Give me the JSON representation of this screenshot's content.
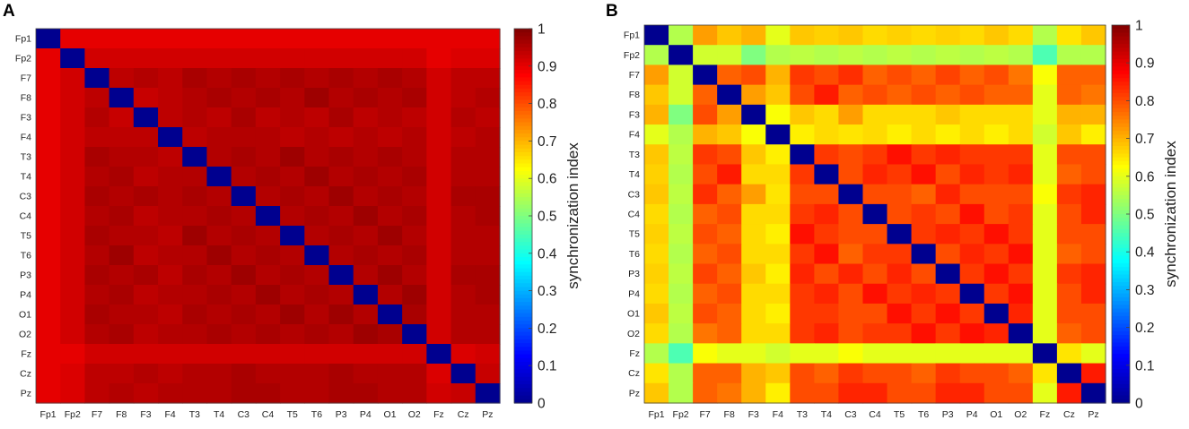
{
  "figure": {
    "panel_a_label": "A",
    "panel_b_label": "B"
  },
  "chart_data": [
    {
      "type": "heatmap",
      "panel": "A",
      "title": "",
      "xlabel": "",
      "ylabel": "",
      "colorbar_label": "synchronization index",
      "colorbar_range": [
        0,
        1
      ],
      "colorbar_ticks": [
        "0",
        "0.1",
        "0.2",
        "0.3",
        "0.4",
        "0.5",
        "0.6",
        "0.7",
        "0.8",
        "0.9",
        "1"
      ],
      "channels": [
        "Fp1",
        "Fp2",
        "F7",
        "F8",
        "F3",
        "F4",
        "T3",
        "T4",
        "C3",
        "C4",
        "T5",
        "T6",
        "P3",
        "P4",
        "O1",
        "O2",
        "Fz",
        "Cz",
        "Pz"
      ],
      "matrix": [
        [
          0.0,
          0.9,
          0.9,
          0.9,
          0.9,
          0.9,
          0.9,
          0.9,
          0.9,
          0.9,
          0.9,
          0.9,
          0.9,
          0.9,
          0.9,
          0.9,
          0.9,
          0.9,
          0.9
        ],
        [
          0.9,
          0.0,
          0.92,
          0.92,
          0.92,
          0.92,
          0.92,
          0.92,
          0.92,
          0.92,
          0.92,
          0.92,
          0.92,
          0.92,
          0.92,
          0.92,
          0.9,
          0.91,
          0.91
        ],
        [
          0.9,
          0.92,
          0.0,
          0.94,
          0.95,
          0.94,
          0.96,
          0.95,
          0.96,
          0.95,
          0.96,
          0.95,
          0.96,
          0.95,
          0.96,
          0.95,
          0.92,
          0.94,
          0.94
        ],
        [
          0.9,
          0.92,
          0.94,
          0.0,
          0.93,
          0.94,
          0.95,
          0.96,
          0.95,
          0.96,
          0.95,
          0.97,
          0.95,
          0.96,
          0.95,
          0.96,
          0.92,
          0.94,
          0.95
        ],
        [
          0.9,
          0.92,
          0.95,
          0.93,
          0.0,
          0.94,
          0.95,
          0.94,
          0.96,
          0.94,
          0.95,
          0.94,
          0.96,
          0.94,
          0.95,
          0.94,
          0.92,
          0.95,
          0.94
        ],
        [
          0.9,
          0.92,
          0.94,
          0.94,
          0.94,
          0.0,
          0.94,
          0.95,
          0.95,
          0.95,
          0.94,
          0.95,
          0.94,
          0.95,
          0.94,
          0.95,
          0.92,
          0.94,
          0.95
        ],
        [
          0.9,
          0.92,
          0.96,
          0.95,
          0.95,
          0.94,
          0.0,
          0.95,
          0.96,
          0.95,
          0.97,
          0.95,
          0.96,
          0.95,
          0.96,
          0.95,
          0.92,
          0.95,
          0.95
        ],
        [
          0.9,
          0.92,
          0.95,
          0.96,
          0.94,
          0.95,
          0.95,
          0.0,
          0.95,
          0.96,
          0.95,
          0.97,
          0.95,
          0.96,
          0.95,
          0.96,
          0.92,
          0.95,
          0.95
        ],
        [
          0.9,
          0.92,
          0.96,
          0.95,
          0.96,
          0.95,
          0.96,
          0.95,
          0.0,
          0.95,
          0.96,
          0.95,
          0.97,
          0.95,
          0.96,
          0.95,
          0.92,
          0.96,
          0.96
        ],
        [
          0.9,
          0.92,
          0.95,
          0.96,
          0.94,
          0.95,
          0.95,
          0.96,
          0.95,
          0.0,
          0.95,
          0.96,
          0.95,
          0.97,
          0.95,
          0.96,
          0.92,
          0.95,
          0.96
        ],
        [
          0.9,
          0.92,
          0.96,
          0.95,
          0.95,
          0.94,
          0.97,
          0.95,
          0.96,
          0.95,
          0.0,
          0.95,
          0.96,
          0.95,
          0.97,
          0.95,
          0.92,
          0.95,
          0.95
        ],
        [
          0.9,
          0.92,
          0.95,
          0.97,
          0.94,
          0.95,
          0.95,
          0.97,
          0.95,
          0.96,
          0.95,
          0.0,
          0.95,
          0.96,
          0.95,
          0.96,
          0.92,
          0.95,
          0.95
        ],
        [
          0.9,
          0.92,
          0.96,
          0.95,
          0.96,
          0.94,
          0.96,
          0.95,
          0.97,
          0.95,
          0.96,
          0.95,
          0.0,
          0.95,
          0.97,
          0.95,
          0.92,
          0.96,
          0.96
        ],
        [
          0.9,
          0.92,
          0.95,
          0.96,
          0.94,
          0.95,
          0.95,
          0.96,
          0.95,
          0.97,
          0.95,
          0.96,
          0.95,
          0.0,
          0.95,
          0.97,
          0.92,
          0.95,
          0.96
        ],
        [
          0.9,
          0.92,
          0.96,
          0.95,
          0.95,
          0.94,
          0.96,
          0.95,
          0.96,
          0.95,
          0.97,
          0.95,
          0.97,
          0.95,
          0.0,
          0.96,
          0.92,
          0.95,
          0.95
        ],
        [
          0.9,
          0.92,
          0.95,
          0.96,
          0.94,
          0.95,
          0.95,
          0.96,
          0.95,
          0.96,
          0.95,
          0.96,
          0.95,
          0.97,
          0.96,
          0.0,
          0.92,
          0.95,
          0.95
        ],
        [
          0.9,
          0.9,
          0.92,
          0.92,
          0.92,
          0.92,
          0.92,
          0.92,
          0.92,
          0.92,
          0.92,
          0.92,
          0.92,
          0.92,
          0.92,
          0.92,
          0.0,
          0.91,
          0.92
        ],
        [
          0.9,
          0.91,
          0.94,
          0.94,
          0.95,
          0.94,
          0.95,
          0.95,
          0.96,
          0.95,
          0.95,
          0.95,
          0.96,
          0.95,
          0.95,
          0.95,
          0.91,
          0.0,
          0.93
        ],
        [
          0.9,
          0.91,
          0.94,
          0.95,
          0.94,
          0.95,
          0.95,
          0.95,
          0.96,
          0.96,
          0.95,
          0.95,
          0.96,
          0.96,
          0.95,
          0.95,
          0.92,
          0.93,
          0.0
        ]
      ]
    },
    {
      "type": "heatmap",
      "panel": "B",
      "title": "",
      "xlabel": "",
      "ylabel": "",
      "colorbar_label": "synchronization index",
      "colorbar_range": [
        0,
        1
      ],
      "colorbar_ticks": [
        "0",
        "0.1",
        "0.2",
        "0.3",
        "0.4",
        "0.5",
        "0.6",
        "0.7",
        "0.8",
        "0.9",
        "1"
      ],
      "channels": [
        "Fp1",
        "Fp2",
        "F7",
        "F8",
        "F3",
        "F4",
        "T3",
        "T4",
        "C3",
        "C4",
        "T5",
        "T6",
        "P3",
        "P4",
        "O1",
        "O2",
        "Fz",
        "Cz",
        "Pz"
      ],
      "matrix": [
        [
          0.0,
          0.55,
          0.72,
          0.68,
          0.7,
          0.6,
          0.68,
          0.67,
          0.68,
          0.66,
          0.67,
          0.66,
          0.67,
          0.66,
          0.68,
          0.66,
          0.55,
          0.65,
          0.68
        ],
        [
          0.55,
          0.0,
          0.58,
          0.58,
          0.5,
          0.55,
          0.56,
          0.55,
          0.56,
          0.55,
          0.56,
          0.55,
          0.56,
          0.55,
          0.56,
          0.55,
          0.45,
          0.55,
          0.55
        ],
        [
          0.72,
          0.58,
          0.0,
          0.78,
          0.8,
          0.7,
          0.82,
          0.8,
          0.83,
          0.78,
          0.8,
          0.78,
          0.81,
          0.78,
          0.8,
          0.76,
          0.62,
          0.78,
          0.78
        ],
        [
          0.68,
          0.58,
          0.78,
          0.0,
          0.72,
          0.68,
          0.8,
          0.85,
          0.78,
          0.8,
          0.78,
          0.8,
          0.78,
          0.8,
          0.78,
          0.78,
          0.6,
          0.78,
          0.76
        ],
        [
          0.7,
          0.5,
          0.8,
          0.72,
          0.0,
          0.62,
          0.68,
          0.66,
          0.72,
          0.66,
          0.66,
          0.66,
          0.68,
          0.66,
          0.66,
          0.66,
          0.6,
          0.7,
          0.7
        ],
        [
          0.6,
          0.55,
          0.7,
          0.68,
          0.62,
          0.0,
          0.64,
          0.66,
          0.65,
          0.66,
          0.64,
          0.66,
          0.64,
          0.66,
          0.64,
          0.66,
          0.58,
          0.68,
          0.64
        ],
        [
          0.68,
          0.56,
          0.82,
          0.8,
          0.68,
          0.64,
          0.0,
          0.82,
          0.8,
          0.82,
          0.86,
          0.82,
          0.84,
          0.82,
          0.82,
          0.82,
          0.6,
          0.8,
          0.8
        ],
        [
          0.67,
          0.55,
          0.8,
          0.85,
          0.66,
          0.66,
          0.82,
          0.0,
          0.8,
          0.84,
          0.82,
          0.86,
          0.8,
          0.84,
          0.82,
          0.84,
          0.6,
          0.78,
          0.8
        ],
        [
          0.68,
          0.56,
          0.83,
          0.78,
          0.72,
          0.65,
          0.8,
          0.8,
          0.0,
          0.8,
          0.8,
          0.78,
          0.84,
          0.8,
          0.8,
          0.8,
          0.62,
          0.82,
          0.84
        ],
        [
          0.66,
          0.55,
          0.78,
          0.8,
          0.66,
          0.66,
          0.82,
          0.84,
          0.8,
          0.0,
          0.8,
          0.82,
          0.8,
          0.86,
          0.8,
          0.82,
          0.6,
          0.8,
          0.84
        ],
        [
          0.67,
          0.56,
          0.8,
          0.78,
          0.66,
          0.64,
          0.86,
          0.82,
          0.8,
          0.8,
          0.0,
          0.82,
          0.84,
          0.82,
          0.86,
          0.82,
          0.6,
          0.8,
          0.8
        ],
        [
          0.66,
          0.55,
          0.78,
          0.8,
          0.66,
          0.66,
          0.82,
          0.86,
          0.78,
          0.82,
          0.82,
          0.0,
          0.8,
          0.84,
          0.82,
          0.86,
          0.6,
          0.78,
          0.8
        ],
        [
          0.67,
          0.56,
          0.81,
          0.78,
          0.68,
          0.64,
          0.84,
          0.8,
          0.84,
          0.8,
          0.84,
          0.8,
          0.0,
          0.82,
          0.86,
          0.82,
          0.6,
          0.82,
          0.84
        ],
        [
          0.66,
          0.55,
          0.78,
          0.8,
          0.66,
          0.66,
          0.82,
          0.84,
          0.8,
          0.86,
          0.82,
          0.84,
          0.82,
          0.0,
          0.82,
          0.86,
          0.6,
          0.8,
          0.84
        ],
        [
          0.68,
          0.56,
          0.8,
          0.78,
          0.66,
          0.64,
          0.82,
          0.82,
          0.8,
          0.8,
          0.86,
          0.82,
          0.86,
          0.82,
          0.0,
          0.84,
          0.6,
          0.8,
          0.8
        ],
        [
          0.66,
          0.55,
          0.76,
          0.78,
          0.66,
          0.66,
          0.82,
          0.84,
          0.8,
          0.82,
          0.82,
          0.86,
          0.82,
          0.86,
          0.84,
          0.0,
          0.6,
          0.78,
          0.8
        ],
        [
          0.55,
          0.45,
          0.62,
          0.6,
          0.6,
          0.58,
          0.6,
          0.6,
          0.62,
          0.6,
          0.6,
          0.6,
          0.6,
          0.6,
          0.6,
          0.6,
          0.0,
          0.65,
          0.6
        ],
        [
          0.65,
          0.55,
          0.78,
          0.78,
          0.7,
          0.68,
          0.8,
          0.78,
          0.82,
          0.8,
          0.8,
          0.78,
          0.82,
          0.8,
          0.8,
          0.78,
          0.65,
          0.0,
          0.85
        ],
        [
          0.68,
          0.55,
          0.78,
          0.76,
          0.7,
          0.64,
          0.8,
          0.8,
          0.84,
          0.84,
          0.8,
          0.8,
          0.84,
          0.84,
          0.8,
          0.8,
          0.6,
          0.85,
          0.0
        ]
      ]
    }
  ]
}
